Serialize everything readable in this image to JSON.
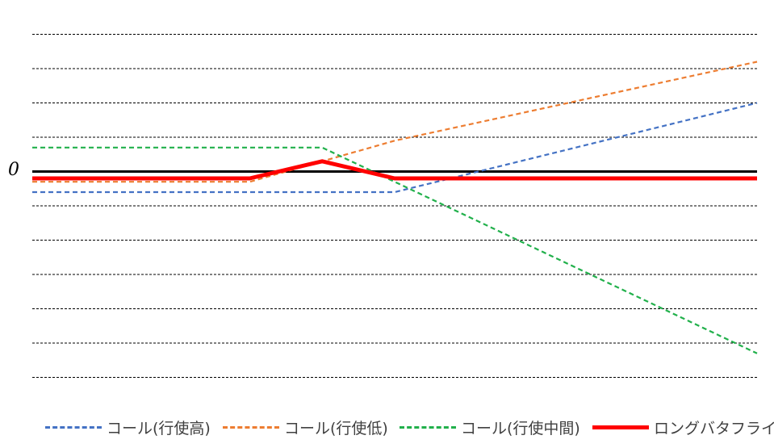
{
  "chart_data": {
    "type": "line",
    "title": "",
    "xlabel": "",
    "ylabel": "",
    "x": [
      0,
      3,
      4,
      5,
      10
    ],
    "xlim": [
      0,
      10
    ],
    "ylim": [
      -6,
      4
    ],
    "y_tick_labels": [
      {
        "value": 0,
        "label": "0"
      }
    ],
    "grid": "horizontal-dashed",
    "legend_position": "bottom",
    "series": [
      {
        "name": "コール(行使高)",
        "color": "#4472C4",
        "style": "dashed",
        "values": [
          -0.6,
          -0.6,
          -0.6,
          -0.6,
          2.0
        ]
      },
      {
        "name": "コール(行使低)",
        "color": "#ED7D31",
        "style": "dashed",
        "values": [
          -0.3,
          -0.3,
          0.3,
          0.9,
          3.2
        ]
      },
      {
        "name": "コール(行使中間)",
        "color": "#21B04B",
        "style": "dashed",
        "values": [
          0.7,
          0.7,
          0.7,
          -0.3,
          -5.3
        ]
      },
      {
        "name": "ロングバタフライ",
        "color": "#FF0000",
        "style": "solid",
        "values": [
          -0.2,
          -0.2,
          0.3,
          -0.2,
          -0.2
        ]
      }
    ]
  },
  "legend": {
    "items": [
      {
        "label": "コール(行使高)",
        "color": "#4472C4",
        "style": "dashed"
      },
      {
        "label": "コール(行使低)",
        "color": "#ED7D31",
        "style": "dashed"
      },
      {
        "label": "コール(行使中間)",
        "color": "#21B04B",
        "style": "dashed"
      },
      {
        "label": "ロングバタフライ",
        "color": "#FF0000",
        "style": "solid"
      }
    ]
  },
  "axis": {
    "zero_label": "0"
  }
}
